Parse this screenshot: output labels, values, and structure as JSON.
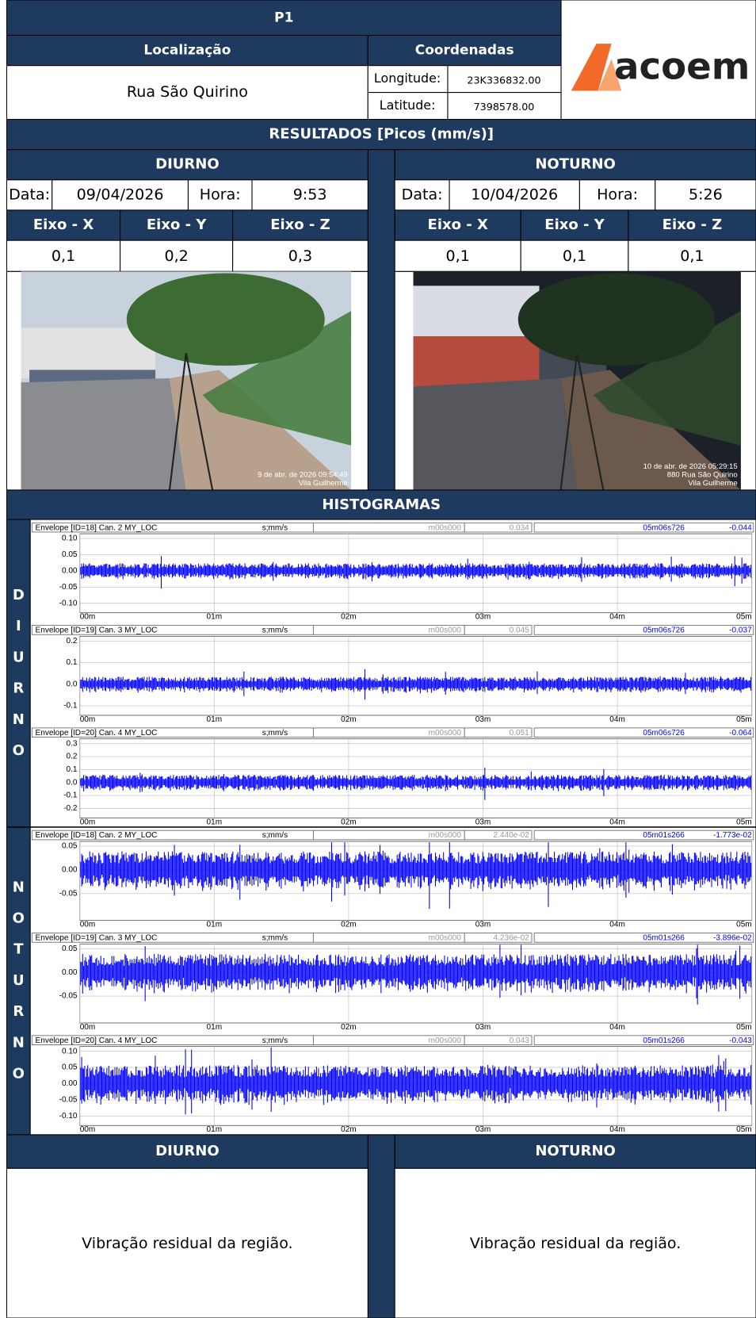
{
  "header": {
    "title": "P1",
    "location_label": "Localização",
    "coordinates_label": "Coordenadas",
    "location": "Rua São Quirino",
    "longitude_label": "Longitude:",
    "longitude": "23K336832.00",
    "latitude_label": "Latitude:",
    "latitude": "7398578.00",
    "logo": "acoem"
  },
  "results": {
    "title": "RESULTADOS [Picos (mm/s)]",
    "periods": [
      {
        "name": "DIURNO",
        "date_label": "Data:",
        "date": "09/04/2026",
        "time_label": "Hora:",
        "time": "9:53",
        "axes": [
          {
            "label": "Eixo - X",
            "value": "0,1"
          },
          {
            "label": "Eixo - Y",
            "value": "0,2"
          },
          {
            "label": "Eixo - Z",
            "value": "0,3"
          }
        ],
        "photo_caption": [
          "9 de abr. de 2026 09:54:49",
          "Vila Guilherme"
        ]
      },
      {
        "name": "NOTURNO",
        "date_label": "Data:",
        "date": "10/04/2026",
        "time_label": "Hora:",
        "time": "5:26",
        "axes": [
          {
            "label": "Eixo - X",
            "value": "0,1"
          },
          {
            "label": "Eixo - Y",
            "value": "0,1"
          },
          {
            "label": "Eixo - Z",
            "value": "0,1"
          }
        ],
        "photo_caption": [
          "10 de abr. de 2026 05:29:15",
          "880 Rua São Quirino",
          "Vila Guilherme"
        ]
      }
    ]
  },
  "histograms": {
    "title": "HISTOGRAMAS",
    "xticks": [
      "00m",
      "01m",
      "02m",
      "03m",
      "04m",
      "05m"
    ],
    "periods": [
      {
        "label": "DIURNO",
        "plots": [
          {
            "header": "Envelope [ID=18]  Can. 2 MY_LOC",
            "units": "s;mm/s",
            "start": "m00s000",
            "start_value": "0.034",
            "peak_time": "05m06s726",
            "peak_value": "-0.044",
            "yticks": [
              "0.10",
              "0.05",
              "0.00",
              "-0.05",
              "-0.10"
            ]
          },
          {
            "header": "Envelope [ID=19]  Can. 3 MY_LOC",
            "units": "s;mm/s",
            "start": "m00s000",
            "start_value": "0.045",
            "peak_time": "05m06s726",
            "peak_value": "-0.037",
            "yticks": [
              "0.2",
              "0.1",
              "0.0",
              "-0.1"
            ]
          },
          {
            "header": "Envelope [ID=20]  Can. 4 MY_LOC",
            "units": "s;mm/s",
            "start": "m00s000",
            "start_value": "0.051",
            "peak_time": "05m06s726",
            "peak_value": "-0.064",
            "yticks": [
              "0.3",
              "0.2",
              "0.1",
              "0.0",
              "-0.1",
              "-0.2"
            ]
          }
        ]
      },
      {
        "label": "NOTURNO",
        "plots": [
          {
            "header": "Envelope [ID=18]  Can. 2 MY_LOC",
            "units": "s;mm/s",
            "start": "m00s000",
            "start_value": "2.440e-02",
            "peak_time": "05m01s266",
            "peak_value": "-1.773e-02",
            "yticks": [
              "0.05",
              "0.00",
              "-0.05"
            ]
          },
          {
            "header": "Envelope [ID=19]  Can. 3 MY_LOC",
            "units": "s;mm/s",
            "start": "m00s000",
            "start_value": "4.236e-02",
            "peak_time": "05m01s266",
            "peak_value": "-3.896e-02",
            "yticks": [
              "0.05",
              "0.00",
              "-0.05"
            ]
          },
          {
            "header": "Envelope [ID=20]  Can. 4 MY_LOC",
            "units": "s;mm/s",
            "start": "m00s000",
            "start_value": "0.043",
            "peak_time": "05m01s266",
            "peak_value": "-0.043",
            "yticks": [
              "0.10",
              "0.05",
              "0.00",
              "-0.05",
              "-0.10"
            ]
          }
        ]
      }
    ]
  },
  "notes": [
    {
      "title": "DIURNO",
      "text": "Vibração residual da região."
    },
    {
      "title": "NOTURNO",
      "text": "Vibração residual da região."
    }
  ]
}
